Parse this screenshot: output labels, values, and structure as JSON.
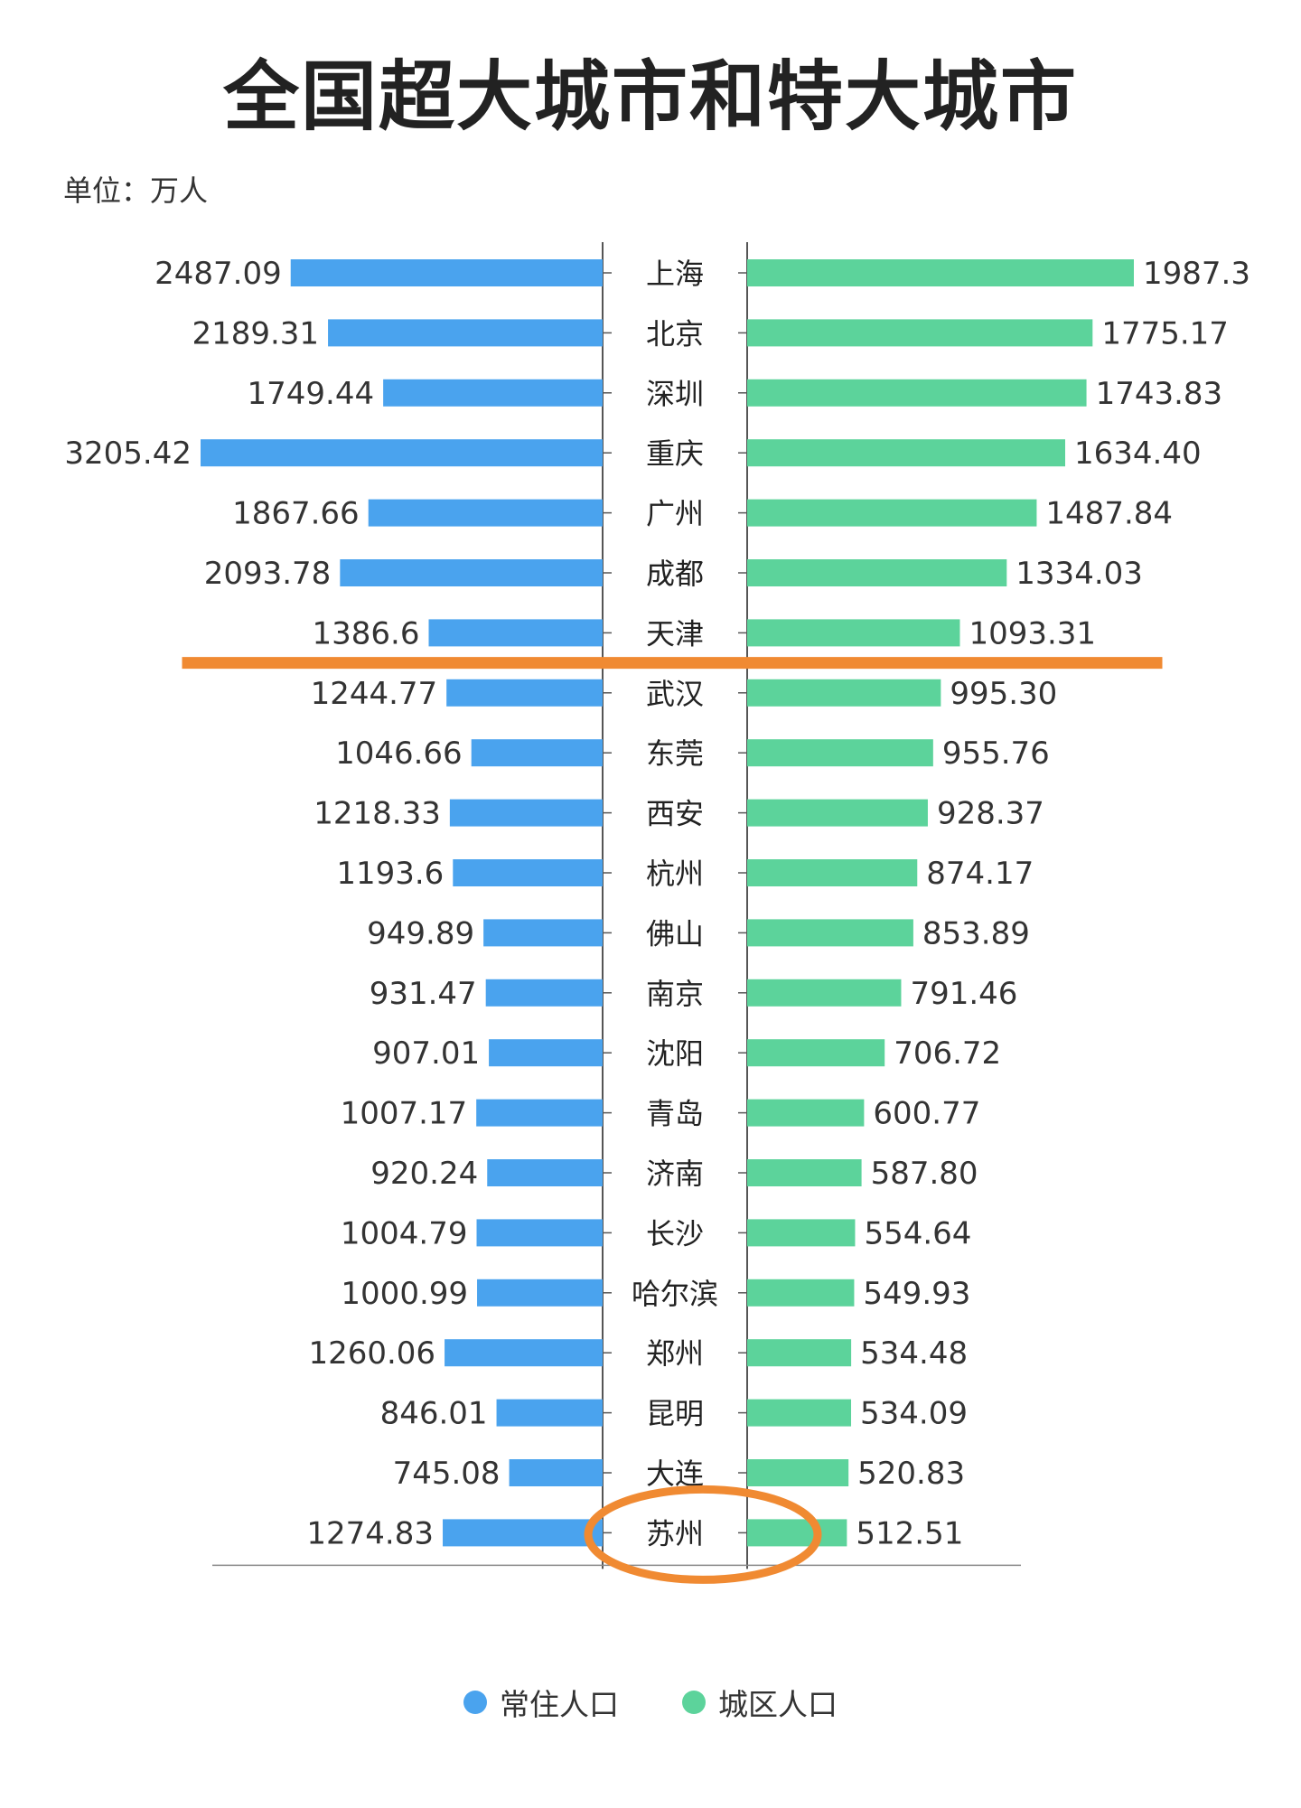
{
  "title": "全国超大城市和特大城市",
  "unit_label": "单位：万人",
  "colors": {
    "resident": "#4aa3ee",
    "urban": "#5cd39b",
    "highlight": "#f08a32"
  },
  "legend": [
    {
      "name": "常住人口",
      "color": "#4aa3ee"
    },
    {
      "name": "城区人口",
      "color": "#5cd39b"
    }
  ],
  "chart_data": {
    "type": "bar",
    "layout": "butterfly",
    "categories": [
      "上海",
      "北京",
      "深圳",
      "重庆",
      "广州",
      "成都",
      "天津",
      "武汉",
      "东莞",
      "西安",
      "杭州",
      "佛山",
      "南京",
      "沈阳",
      "青岛",
      "济南",
      "长沙",
      "哈尔滨",
      "郑州",
      "昆明",
      "大连",
      "苏州"
    ],
    "series": [
      {
        "name": "常住人口",
        "side": "left",
        "values": [
          2487.09,
          2189.31,
          1749.44,
          3205.42,
          1867.66,
          2093.78,
          1386.6,
          1244.77,
          1046.66,
          1218.33,
          1193.6,
          949.89,
          931.47,
          907.01,
          1007.17,
          920.24,
          1004.79,
          1000.99,
          1260.06,
          846.01,
          745.08,
          1274.83
        ],
        "labels": [
          "2487.09",
          "2189.31",
          "1749.44",
          "3205.42",
          "1867.66",
          "2093.78",
          "1386.6",
          "1244.77",
          "1046.66",
          "1218.33",
          "1193.6",
          "949.89",
          "931.47",
          "907.01",
          "1007.17",
          "920.24",
          "1004.79",
          "1000.99",
          "1260.06",
          "846.01",
          "745.08",
          "1274.83"
        ]
      },
      {
        "name": "城区人口",
        "side": "right",
        "values": [
          1987.3,
          1775.17,
          1743.83,
          1634.4,
          1487.84,
          1334.03,
          1093.31,
          995.3,
          955.76,
          928.37,
          874.17,
          853.89,
          791.46,
          706.72,
          600.77,
          587.8,
          554.64,
          549.93,
          534.48,
          534.09,
          520.83,
          512.51
        ],
        "labels": [
          "1987.3",
          "1775.17",
          "1743.83",
          "1634.40",
          "1487.84",
          "1334.03",
          "1093.31",
          "995.30",
          "955.76",
          "928.37",
          "874.17",
          "853.89",
          "791.46",
          "706.72",
          "600.77",
          "587.80",
          "554.64",
          "549.93",
          "534.48",
          "534.09",
          "520.83",
          "512.51"
        ]
      }
    ],
    "annotations": [
      {
        "type": "horizontal-line",
        "between": [
          "天津",
          "武汉"
        ]
      },
      {
        "type": "ellipse",
        "target": "苏州"
      }
    ]
  }
}
